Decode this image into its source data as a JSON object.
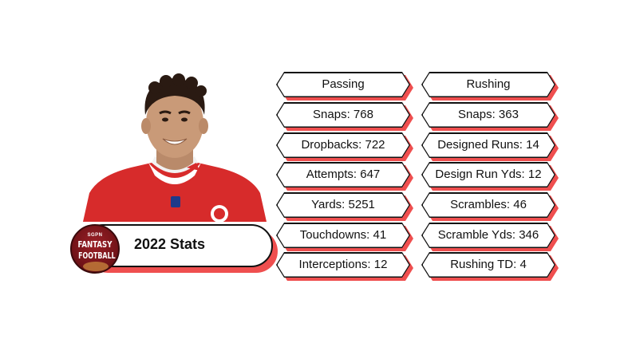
{
  "title": "2022 Stats",
  "logo": {
    "top": "SGPN",
    "line1": "FANTASY",
    "line2": "FOOTBALL"
  },
  "passing": [
    "Passing",
    "Snaps: 768",
    "Dropbacks: 722",
    "Attempts: 647",
    "Yards: 5251",
    "Touchdowns: 41",
    "Interceptions: 12"
  ],
  "rushing": [
    "Rushing",
    "Snaps: 363",
    "Designed Runs: 14",
    "Design Run Yds: 12",
    "Scrambles: 46",
    "Scramble Yds: 346",
    "Rushing TD: 4"
  ],
  "colors": {
    "accent": "#ef4f4f",
    "jersey": "#d72b2b",
    "logo": "#7a151b"
  }
}
